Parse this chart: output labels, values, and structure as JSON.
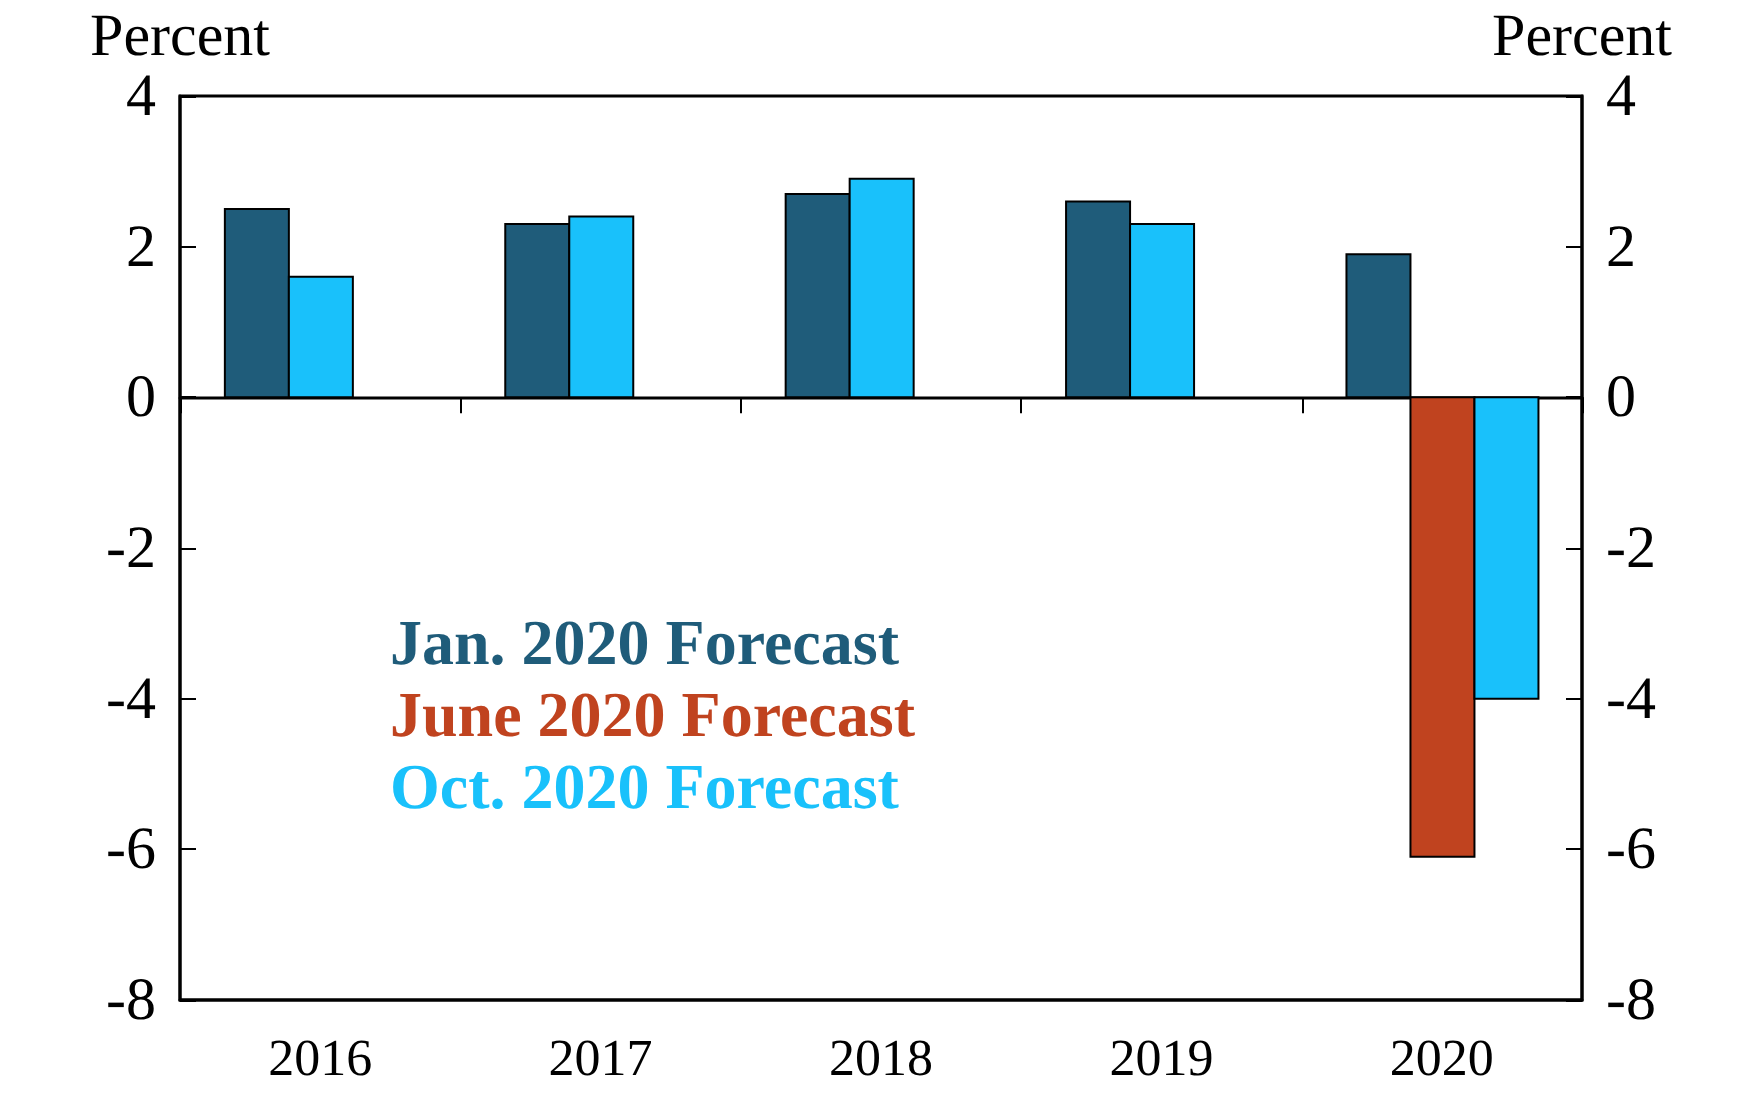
{
  "chart_data": {
    "type": "bar",
    "categories": [
      "2016",
      "2017",
      "2018",
      "2019",
      "2020"
    ],
    "series": [
      {
        "name": "Jan. 2020 Forecast",
        "color": "#1f5c7a",
        "values": [
          2.5,
          2.3,
          2.7,
          2.6,
          1.9
        ]
      },
      {
        "name": "June 2020 Forecast",
        "color": "#c0431f",
        "values": [
          null,
          null,
          null,
          null,
          -6.1
        ]
      },
      {
        "name": "Oct. 2020 Forecast",
        "color": "#19c1fb",
        "values": [
          1.6,
          2.4,
          2.9,
          2.3,
          -4.0
        ]
      }
    ],
    "ylabel": "Percent",
    "y2label": "Percent",
    "ylim": [
      -8,
      4
    ],
    "yticks": [
      -8,
      -6,
      -4,
      -2,
      0,
      2,
      4
    ],
    "y2lim": [
      -8,
      4
    ],
    "y2ticks": [
      -8,
      -6,
      -4,
      -2,
      0,
      2,
      4
    ],
    "legend": "bottom left"
  }
}
